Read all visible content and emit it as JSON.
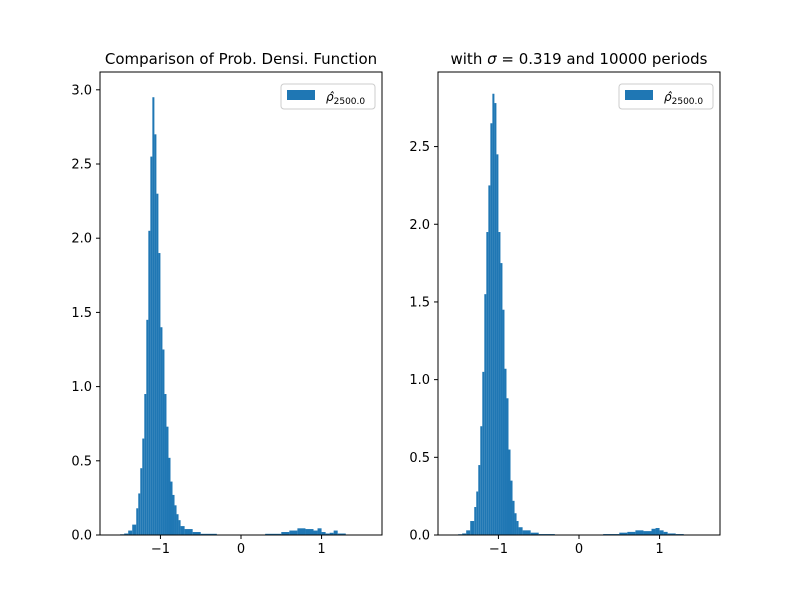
{
  "chart_data": [
    {
      "type": "bar",
      "subtype": "histogram",
      "title": "Comparison of Prob. Densi. Function",
      "legend": {
        "label": "ρ̂",
        "label_subscript": "2500.0",
        "placement": "upper-right"
      },
      "xlim": [
        -1.75,
        1.75
      ],
      "ylim": [
        0,
        3.12
      ],
      "xticks": [
        -1,
        0,
        1
      ],
      "xtick_labels": [
        "−1",
        "0",
        "1"
      ],
      "yticks": [
        0.0,
        0.5,
        1.0,
        1.5,
        2.0,
        2.5,
        3.0
      ],
      "ytick_labels": [
        "0.0",
        "0.5",
        "1.0",
        "1.5",
        "2.0",
        "2.5",
        "3.0"
      ],
      "color": "#1f77b4",
      "bins": [
        {
          "x0": -1.5,
          "x1": -1.45,
          "h": 0.005
        },
        {
          "x0": -1.45,
          "x1": -1.4,
          "h": 0.01
        },
        {
          "x0": -1.4,
          "x1": -1.35,
          "h": 0.03
        },
        {
          "x0": -1.35,
          "x1": -1.3,
          "h": 0.07
        },
        {
          "x0": -1.3,
          "x1": -1.275,
          "h": 0.18
        },
        {
          "x0": -1.275,
          "x1": -1.25,
          "h": 0.28
        },
        {
          "x0": -1.25,
          "x1": -1.225,
          "h": 0.45
        },
        {
          "x0": -1.225,
          "x1": -1.2,
          "h": 0.65
        },
        {
          "x0": -1.2,
          "x1": -1.175,
          "h": 0.95
        },
        {
          "x0": -1.175,
          "x1": -1.15,
          "h": 1.45
        },
        {
          "x0": -1.15,
          "x1": -1.125,
          "h": 2.05
        },
        {
          "x0": -1.125,
          "x1": -1.1,
          "h": 2.55
        },
        {
          "x0": -1.1,
          "x1": -1.075,
          "h": 2.95
        },
        {
          "x0": -1.075,
          "x1": -1.05,
          "h": 2.7
        },
        {
          "x0": -1.05,
          "x1": -1.025,
          "h": 2.3
        },
        {
          "x0": -1.025,
          "x1": -1.0,
          "h": 1.9
        },
        {
          "x0": -1.0,
          "x1": -0.975,
          "h": 1.4
        },
        {
          "x0": -0.975,
          "x1": -0.95,
          "h": 1.25
        },
        {
          "x0": -0.95,
          "x1": -0.925,
          "h": 0.95
        },
        {
          "x0": -0.925,
          "x1": -0.9,
          "h": 0.73
        },
        {
          "x0": -0.9,
          "x1": -0.875,
          "h": 0.52
        },
        {
          "x0": -0.875,
          "x1": -0.85,
          "h": 0.36
        },
        {
          "x0": -0.85,
          "x1": -0.825,
          "h": 0.27
        },
        {
          "x0": -0.825,
          "x1": -0.8,
          "h": 0.2
        },
        {
          "x0": -0.8,
          "x1": -0.775,
          "h": 0.14
        },
        {
          "x0": -0.775,
          "x1": -0.75,
          "h": 0.1
        },
        {
          "x0": -0.75,
          "x1": -0.7,
          "h": 0.06
        },
        {
          "x0": -0.7,
          "x1": -0.6,
          "h": 0.04
        },
        {
          "x0": -0.6,
          "x1": -0.5,
          "h": 0.02
        },
        {
          "x0": -0.5,
          "x1": -0.3,
          "h": 0.008
        },
        {
          "x0": 0.3,
          "x1": 0.5,
          "h": 0.008
        },
        {
          "x0": 0.5,
          "x1": 0.6,
          "h": 0.02
        },
        {
          "x0": 0.6,
          "x1": 0.7,
          "h": 0.03
        },
        {
          "x0": 0.7,
          "x1": 0.8,
          "h": 0.045
        },
        {
          "x0": 0.8,
          "x1": 0.9,
          "h": 0.04
        },
        {
          "x0": 0.9,
          "x1": 0.95,
          "h": 0.03
        },
        {
          "x0": 0.95,
          "x1": 1.0,
          "h": 0.045
        },
        {
          "x0": 1.0,
          "x1": 1.05,
          "h": 0.02
        },
        {
          "x0": 1.05,
          "x1": 1.1,
          "h": 0.01
        },
        {
          "x0": 1.1,
          "x1": 1.15,
          "h": 0.015
        },
        {
          "x0": 1.15,
          "x1": 1.2,
          "h": 0.03
        },
        {
          "x0": 1.2,
          "x1": 1.3,
          "h": 0.01
        }
      ]
    },
    {
      "type": "bar",
      "subtype": "histogram",
      "title_prefix": "with ",
      "title_sigma": "σ",
      "title_suffix": " = 0.319 and 10000 periods",
      "legend": {
        "label": "ρ̂",
        "label_subscript": "2500.0",
        "placement": "upper-right"
      },
      "xlim": [
        -1.75,
        1.75
      ],
      "ylim": [
        0,
        2.98
      ],
      "xticks": [
        -1,
        0,
        1
      ],
      "xtick_labels": [
        "−1",
        "0",
        "1"
      ],
      "yticks": [
        0.0,
        0.5,
        1.0,
        1.5,
        2.0,
        2.5
      ],
      "ytick_labels": [
        "0.0",
        "0.5",
        "1.0",
        "1.5",
        "2.0",
        "2.5"
      ],
      "color": "#1f77b4",
      "bins": [
        {
          "x0": -1.5,
          "x1": -1.45,
          "h": 0.005
        },
        {
          "x0": -1.45,
          "x1": -1.4,
          "h": 0.01
        },
        {
          "x0": -1.4,
          "x1": -1.35,
          "h": 0.03
        },
        {
          "x0": -1.35,
          "x1": -1.3,
          "h": 0.09
        },
        {
          "x0": -1.3,
          "x1": -1.275,
          "h": 0.18
        },
        {
          "x0": -1.275,
          "x1": -1.25,
          "h": 0.28
        },
        {
          "x0": -1.25,
          "x1": -1.225,
          "h": 0.45
        },
        {
          "x0": -1.225,
          "x1": -1.2,
          "h": 0.7
        },
        {
          "x0": -1.2,
          "x1": -1.175,
          "h": 1.05
        },
        {
          "x0": -1.175,
          "x1": -1.15,
          "h": 1.55
        },
        {
          "x0": -1.15,
          "x1": -1.125,
          "h": 1.95
        },
        {
          "x0": -1.125,
          "x1": -1.1,
          "h": 2.25
        },
        {
          "x0": -1.1,
          "x1": -1.075,
          "h": 2.65
        },
        {
          "x0": -1.075,
          "x1": -1.05,
          "h": 2.84
        },
        {
          "x0": -1.05,
          "x1": -1.025,
          "h": 2.78
        },
        {
          "x0": -1.025,
          "x1": -1.0,
          "h": 2.45
        },
        {
          "x0": -1.0,
          "x1": -0.975,
          "h": 1.95
        },
        {
          "x0": -0.975,
          "x1": -0.95,
          "h": 1.75
        },
        {
          "x0": -0.95,
          "x1": -0.925,
          "h": 1.45
        },
        {
          "x0": -0.925,
          "x1": -0.9,
          "h": 1.07
        },
        {
          "x0": -0.9,
          "x1": -0.875,
          "h": 0.88
        },
        {
          "x0": -0.875,
          "x1": -0.85,
          "h": 0.55
        },
        {
          "x0": -0.85,
          "x1": -0.825,
          "h": 0.35
        },
        {
          "x0": -0.825,
          "x1": -0.8,
          "h": 0.22
        },
        {
          "x0": -0.8,
          "x1": -0.775,
          "h": 0.14
        },
        {
          "x0": -0.775,
          "x1": -0.75,
          "h": 0.09
        },
        {
          "x0": -0.75,
          "x1": -0.7,
          "h": 0.05
        },
        {
          "x0": -0.7,
          "x1": -0.6,
          "h": 0.03
        },
        {
          "x0": -0.6,
          "x1": -0.5,
          "h": 0.015
        },
        {
          "x0": -0.5,
          "x1": -0.3,
          "h": 0.006
        },
        {
          "x0": 0.3,
          "x1": 0.5,
          "h": 0.006
        },
        {
          "x0": 0.5,
          "x1": 0.6,
          "h": 0.015
        },
        {
          "x0": 0.6,
          "x1": 0.7,
          "h": 0.02
        },
        {
          "x0": 0.7,
          "x1": 0.8,
          "h": 0.03
        },
        {
          "x0": 0.8,
          "x1": 0.9,
          "h": 0.025
        },
        {
          "x0": 0.9,
          "x1": 0.95,
          "h": 0.04
        },
        {
          "x0": 0.95,
          "x1": 1.0,
          "h": 0.045
        },
        {
          "x0": 1.0,
          "x1": 1.05,
          "h": 0.03
        },
        {
          "x0": 1.05,
          "x1": 1.1,
          "h": 0.02
        },
        {
          "x0": 1.1,
          "x1": 1.2,
          "h": 0.01
        },
        {
          "x0": 1.2,
          "x1": 1.3,
          "h": 0.006
        }
      ]
    }
  ]
}
